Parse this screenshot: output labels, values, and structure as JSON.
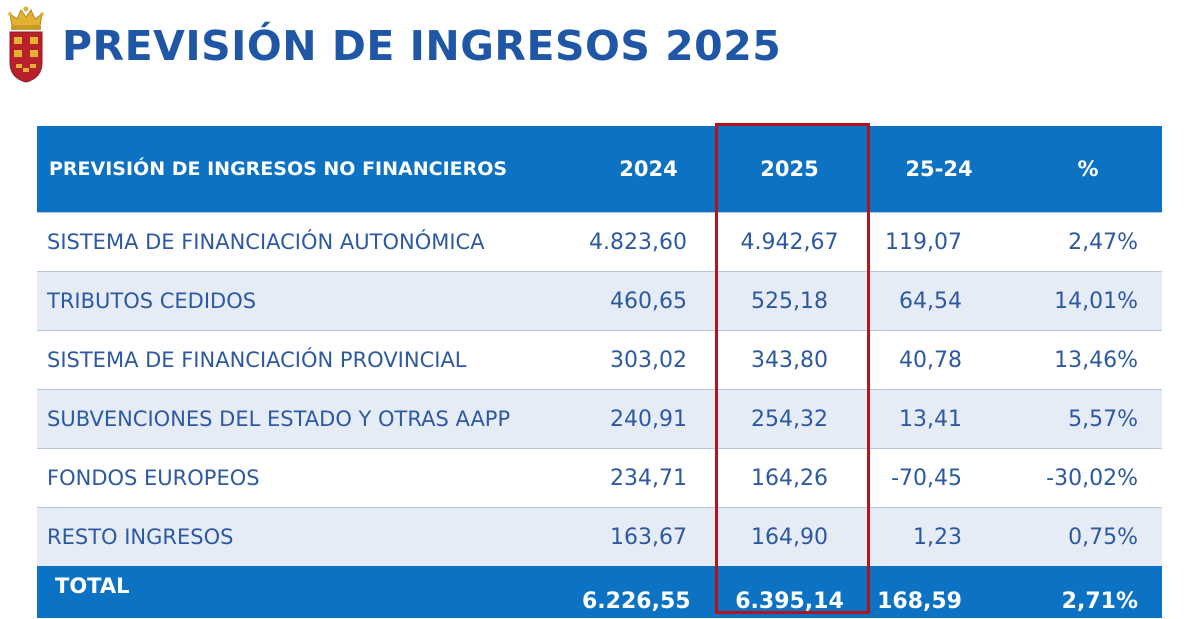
{
  "title": "PREVISIÓN DE INGRESOS 2025",
  "table": {
    "headers": [
      "PREVISIÓN DE INGRESOS NO FINANCIEROS",
      "2024",
      "2025",
      "25-24",
      "%"
    ],
    "rows": [
      {
        "label": "SISTEMA DE FINANCIACIÓN AUTONÓMICA",
        "v2024": "4.823,60",
        "v2025": "4.942,67",
        "diff": "119,07",
        "pct": "2,47%"
      },
      {
        "label": "TRIBUTOS CEDIDOS",
        "v2024": "460,65",
        "v2025": "525,18",
        "diff": "64,54",
        "pct": "14,01%"
      },
      {
        "label": "SISTEMA DE FINANCIACIÓN PROVINCIAL",
        "v2024": "303,02",
        "v2025": "343,80",
        "diff": "40,78",
        "pct": "13,46%"
      },
      {
        "label": "SUBVENCIONES DEL ESTADO Y OTRAS AAPP",
        "v2024": "240,91",
        "v2025": "254,32",
        "diff": "13,41",
        "pct": "5,57%"
      },
      {
        "label": "FONDOS EUROPEOS",
        "v2024": "234,71",
        "v2025": "164,26",
        "diff": "-70,45",
        "pct": "-30,02%"
      },
      {
        "label": "RESTO INGRESOS",
        "v2024": "163,67",
        "v2025": "164,90",
        "diff": "1,23",
        "pct": "0,75%"
      }
    ],
    "total": {
      "label": "TOTAL",
      "v2024": "6.226,55",
      "v2025": "6.395,14",
      "diff": "168,59",
      "pct": "2,71%"
    }
  },
  "colors": {
    "title": "#1f56a6",
    "header_bg": "#0c72c4",
    "row_alt_bg": "#e6ecf5",
    "cell_text": "#2d59a3",
    "highlight_border": "#b1151e"
  },
  "icons": {
    "logo": "coat-of-arms-icon"
  }
}
